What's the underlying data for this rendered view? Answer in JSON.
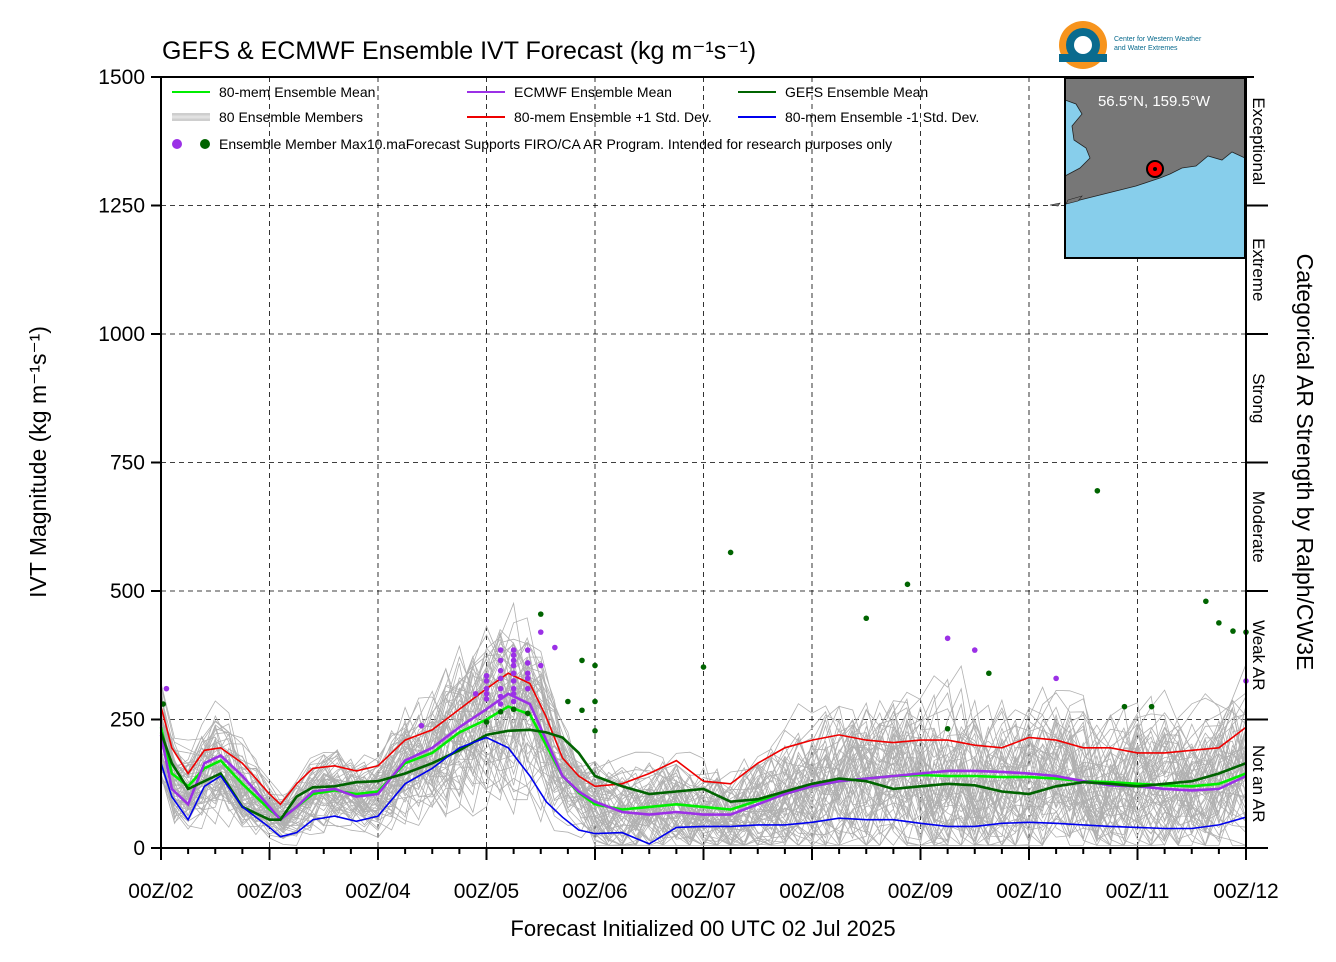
{
  "logo": {
    "line1": "Center for Western Weather",
    "line2": "and Water Extremes"
  },
  "inset_map": {
    "label": "56.5°N, 159.5°W",
    "land_color": "#777777",
    "water_color": "#87ceeb",
    "marker_color": "#ff0000"
  },
  "chart_data": {
    "type": "line",
    "title": "GEFS & ECMWF Ensemble IVT Forecast (kg m⁻¹s⁻¹)",
    "xlabel": "Forecast Initialized 00 UTC 02 Jul 2025",
    "ylabel": "IVT Magnitude (kg m⁻¹s⁻¹)",
    "right_label": "Categorical AR Strength by Ralph/CW3E",
    "xlim": [
      0,
      10
    ],
    "ylim": [
      0,
      1500
    ],
    "x_unit": "days after 00Z/02",
    "yticks": [
      0,
      250,
      500,
      750,
      1000,
      1250,
      1500
    ],
    "xtick_labels": [
      "00Z/02",
      "00Z/03",
      "00Z/04",
      "00Z/05",
      "00Z/06",
      "00Z/07",
      "00Z/08",
      "00Z/09",
      "00Z/10",
      "00Z/11",
      "00Z/12"
    ],
    "grid": true,
    "legend_position": "top-left",
    "categories": [
      {
        "label": "Not an AR",
        "range": [
          0,
          250
        ]
      },
      {
        "label": "Weak AR",
        "range": [
          250,
          500
        ]
      },
      {
        "label": "Moderate",
        "range": [
          500,
          750
        ]
      },
      {
        "label": "Strong",
        "range": [
          750,
          1000
        ]
      },
      {
        "label": "Extreme",
        "range": [
          1000,
          1250
        ]
      },
      {
        "label": "Exceptional",
        "range": [
          1250,
          1500
        ]
      }
    ],
    "legend": [
      {
        "label": "80-mem Ensemble Mean",
        "color": "#00ee00",
        "kind": "line"
      },
      {
        "label": "ECMWF Ensemble Mean",
        "color": "#9b30e6",
        "kind": "line"
      },
      {
        "label": "GEFS Ensemble Mean",
        "color": "#006400",
        "kind": "line"
      },
      {
        "label": "80 Ensemble Members",
        "color": "#b0b0b0",
        "kind": "lines"
      },
      {
        "label": "80-mem Ensemble +1 Std. Dev.",
        "color": "#ee0000",
        "kind": "line"
      },
      {
        "label": "80-mem Ensemble -1 Std. Dev.",
        "color": "#0000ee",
        "kind": "line"
      }
    ],
    "dots_legend": "Ensemble Member Max",
    "disclaimer": "10.maForecast Supports FIRO/CA AR Program. Intended for research purposes only",
    "series": [
      {
        "name": "80-mem Ensemble +1 Std. Dev.",
        "color": "#ee0000",
        "x": [
          0,
          0.1,
          0.25,
          0.4,
          0.55,
          0.75,
          1.0,
          1.1,
          1.25,
          1.4,
          1.6,
          1.8,
          2.0,
          2.25,
          2.5,
          2.75,
          3.0,
          3.2,
          3.4,
          3.55,
          3.7,
          3.85,
          4.0,
          4.25,
          4.5,
          4.75,
          5.0,
          5.25,
          5.5,
          5.75,
          6.0,
          6.25,
          6.5,
          6.75,
          7.0,
          7.25,
          7.5,
          7.75,
          8.0,
          8.25,
          8.5,
          8.75,
          9.0,
          9.25,
          9.5,
          9.75,
          10.0
        ],
        "y": [
          275,
          195,
          145,
          190,
          195,
          165,
          105,
          85,
          125,
          155,
          160,
          150,
          160,
          210,
          230,
          270,
          310,
          340,
          320,
          255,
          175,
          140,
          120,
          125,
          145,
          170,
          130,
          125,
          165,
          195,
          210,
          220,
          210,
          205,
          210,
          210,
          200,
          195,
          215,
          210,
          195,
          195,
          185,
          185,
          190,
          195,
          235
        ]
      },
      {
        "name": "80-mem Ensemble Mean",
        "color": "#00ee00",
        "x": [
          0,
          0.1,
          0.25,
          0.4,
          0.55,
          0.75,
          1.0,
          1.1,
          1.25,
          1.4,
          1.6,
          1.8,
          2.0,
          2.25,
          2.5,
          2.75,
          3.0,
          3.2,
          3.4,
          3.55,
          3.7,
          3.85,
          4.0,
          4.25,
          4.5,
          4.75,
          5.0,
          5.25,
          5.5,
          5.75,
          6.0,
          6.25,
          6.5,
          6.75,
          7.0,
          7.25,
          7.5,
          7.75,
          8.0,
          8.25,
          8.5,
          8.75,
          9.0,
          9.25,
          9.5,
          9.75,
          10.0
        ],
        "y": [
          235,
          145,
          120,
          155,
          170,
          125,
          75,
          58,
          80,
          105,
          112,
          105,
          110,
          165,
          185,
          225,
          250,
          275,
          260,
          200,
          140,
          108,
          85,
          75,
          80,
          85,
          80,
          75,
          92,
          105,
          120,
          130,
          135,
          140,
          142,
          140,
          140,
          138,
          138,
          135,
          130,
          128,
          125,
          122,
          120,
          125,
          145
        ]
      },
      {
        "name": "ECMWF Ensemble Mean",
        "color": "#9b30e6",
        "x": [
          0,
          0.1,
          0.25,
          0.4,
          0.55,
          0.75,
          1.0,
          1.1,
          1.25,
          1.4,
          1.6,
          1.8,
          2.0,
          2.25,
          2.5,
          2.75,
          3.0,
          3.2,
          3.4,
          3.55,
          3.7,
          3.85,
          4.0,
          4.25,
          4.5,
          4.75,
          5.0,
          5.25,
          5.5,
          5.75,
          6.0,
          6.25,
          6.5,
          6.75,
          7.0,
          7.25,
          7.5,
          7.75,
          8.0,
          8.25,
          8.5,
          8.75,
          9.0,
          9.25,
          9.5,
          9.75,
          10.0
        ],
        "y": [
          220,
          115,
          85,
          165,
          180,
          140,
          80,
          55,
          80,
          110,
          115,
          100,
          105,
          170,
          195,
          235,
          270,
          300,
          280,
          210,
          140,
          110,
          90,
          70,
          65,
          70,
          65,
          65,
          85,
          105,
          120,
          130,
          135,
          140,
          145,
          150,
          150,
          148,
          145,
          140,
          130,
          122,
          120,
          115,
          112,
          115,
          140
        ]
      },
      {
        "name": "GEFS Ensemble Mean",
        "color": "#006400",
        "x": [
          0,
          0.1,
          0.25,
          0.4,
          0.55,
          0.75,
          1.0,
          1.1,
          1.25,
          1.4,
          1.6,
          1.8,
          2.0,
          2.25,
          2.5,
          2.75,
          3.0,
          3.2,
          3.4,
          3.55,
          3.7,
          3.85,
          4.0,
          4.25,
          4.5,
          4.75,
          5.0,
          5.25,
          5.5,
          5.75,
          6.0,
          6.25,
          6.5,
          6.75,
          7.0,
          7.25,
          7.5,
          7.75,
          8.0,
          8.25,
          8.5,
          8.75,
          9.0,
          9.25,
          9.5,
          9.75,
          10.0
        ],
        "y": [
          225,
          165,
          115,
          130,
          145,
          80,
          55,
          55,
          100,
          118,
          120,
          128,
          130,
          145,
          165,
          190,
          220,
          228,
          230,
          225,
          215,
          185,
          140,
          120,
          105,
          110,
          115,
          90,
          95,
          110,
          125,
          135,
          130,
          115,
          120,
          125,
          122,
          110,
          105,
          120,
          128,
          125,
          120,
          125,
          130,
          145,
          165
        ]
      },
      {
        "name": "80-mem Ensemble -1 Std. Dev.",
        "color": "#0000ee",
        "x": [
          0,
          0.1,
          0.25,
          0.4,
          0.55,
          0.75,
          1.0,
          1.1,
          1.25,
          1.4,
          1.6,
          1.8,
          2.0,
          2.25,
          2.5,
          2.75,
          3.0,
          3.2,
          3.4,
          3.55,
          3.7,
          3.85,
          4.0,
          4.25,
          4.5,
          4.75,
          5.0,
          5.25,
          5.5,
          5.75,
          6.0,
          6.25,
          6.5,
          6.75,
          7.0,
          7.25,
          7.5,
          7.75,
          8.0,
          8.25,
          8.5,
          8.75,
          9.0,
          9.25,
          9.5,
          9.75,
          10.0
        ],
        "y": [
          165,
          100,
          55,
          120,
          140,
          80,
          40,
          22,
          30,
          55,
          62,
          52,
          62,
          125,
          155,
          195,
          215,
          195,
          140,
          90,
          60,
          35,
          28,
          30,
          8,
          40,
          42,
          42,
          45,
          45,
          50,
          58,
          55,
          55,
          48,
          42,
          42,
          48,
          50,
          48,
          45,
          42,
          40,
          38,
          38,
          45,
          60
        ]
      }
    ],
    "member_max_ecmwf": [
      {
        "x": 0.05,
        "y": 310
      },
      {
        "x": 2.4,
        "y": 238
      },
      {
        "x": 2.9,
        "y": 300
      },
      {
        "x": 3.0,
        "y": 335
      },
      {
        "x": 3.0,
        "y": 325
      },
      {
        "x": 3.0,
        "y": 310
      },
      {
        "x": 3.0,
        "y": 300
      },
      {
        "x": 3.0,
        "y": 290
      },
      {
        "x": 3.13,
        "y": 385
      },
      {
        "x": 3.13,
        "y": 365
      },
      {
        "x": 3.13,
        "y": 345
      },
      {
        "x": 3.13,
        "y": 330
      },
      {
        "x": 3.13,
        "y": 310
      },
      {
        "x": 3.13,
        "y": 295
      },
      {
        "x": 3.13,
        "y": 280
      },
      {
        "x": 3.25,
        "y": 385
      },
      {
        "x": 3.25,
        "y": 375
      },
      {
        "x": 3.25,
        "y": 365
      },
      {
        "x": 3.25,
        "y": 355
      },
      {
        "x": 3.25,
        "y": 340
      },
      {
        "x": 3.25,
        "y": 325
      },
      {
        "x": 3.25,
        "y": 310
      },
      {
        "x": 3.25,
        "y": 300
      },
      {
        "x": 3.25,
        "y": 285
      },
      {
        "x": 3.38,
        "y": 385
      },
      {
        "x": 3.38,
        "y": 360
      },
      {
        "x": 3.38,
        "y": 340
      },
      {
        "x": 3.38,
        "y": 330
      },
      {
        "x": 3.38,
        "y": 310
      },
      {
        "x": 3.5,
        "y": 420
      },
      {
        "x": 3.5,
        "y": 355
      },
      {
        "x": 3.63,
        "y": 390
      },
      {
        "x": 7.25,
        "y": 408
      },
      {
        "x": 7.5,
        "y": 385
      },
      {
        "x": 8.25,
        "y": 330
      },
      {
        "x": 10.0,
        "y": 325
      }
    ],
    "member_max_gefs": [
      {
        "x": 0.02,
        "y": 280
      },
      {
        "x": 3.0,
        "y": 245
      },
      {
        "x": 3.13,
        "y": 265
      },
      {
        "x": 3.25,
        "y": 270
      },
      {
        "x": 3.38,
        "y": 262
      },
      {
        "x": 3.5,
        "y": 455
      },
      {
        "x": 3.75,
        "y": 285
      },
      {
        "x": 3.88,
        "y": 365
      },
      {
        "x": 3.88,
        "y": 268
      },
      {
        "x": 4.0,
        "y": 355
      },
      {
        "x": 4.0,
        "y": 285
      },
      {
        "x": 4.0,
        "y": 228
      },
      {
        "x": 5.0,
        "y": 352
      },
      {
        "x": 5.25,
        "y": 575
      },
      {
        "x": 6.5,
        "y": 447
      },
      {
        "x": 6.88,
        "y": 513
      },
      {
        "x": 7.25,
        "y": 232
      },
      {
        "x": 7.63,
        "y": 340
      },
      {
        "x": 8.63,
        "y": 695
      },
      {
        "x": 8.88,
        "y": 275
      },
      {
        "x": 9.13,
        "y": 275
      },
      {
        "x": 9.63,
        "y": 480
      },
      {
        "x": 9.75,
        "y": 438
      },
      {
        "x": 9.88,
        "y": 422
      },
      {
        "x": 10.0,
        "y": 420
      }
    ]
  }
}
